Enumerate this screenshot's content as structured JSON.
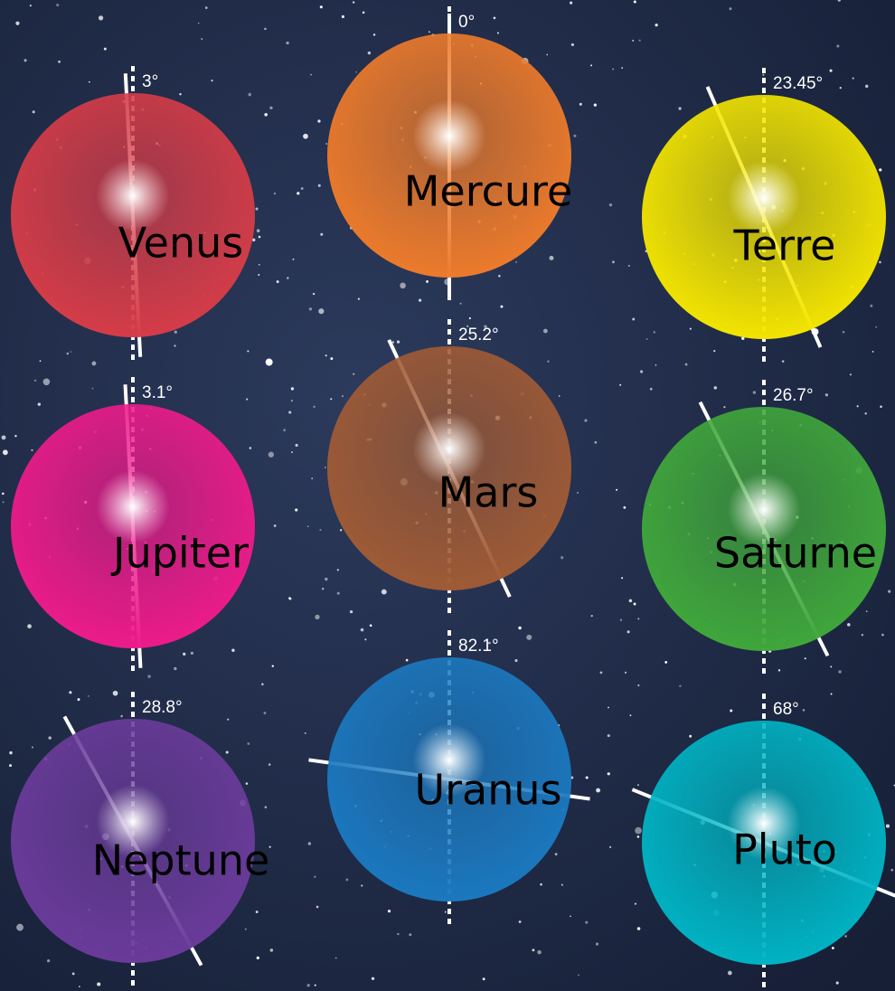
{
  "planets": [
    {
      "name": "Venus",
      "tilt": "3°",
      "color": "#d63c48"
    },
    {
      "name": "Mercure",
      "tilt": "0°",
      "color": "#ee7b2b"
    },
    {
      "name": "Terre",
      "tilt": "23.45°",
      "color": "#f4e600"
    },
    {
      "name": "Jupiter",
      "tilt": "3.1°",
      "color": "#ee1b8b"
    },
    {
      "name": "Mars",
      "tilt": "25.2°",
      "color": "#a05b35"
    },
    {
      "name": "Saturne",
      "tilt": "26.7°",
      "color": "#40a83b"
    },
    {
      "name": "Neptune",
      "tilt": "28.8°",
      "color": "#6b3b9b"
    },
    {
      "name": "Uranus",
      "tilt": "82.1°",
      "color": "#1b79c0"
    },
    {
      "name": "Pluto",
      "tilt": "68°",
      "color": "#00b4c4"
    }
  ]
}
